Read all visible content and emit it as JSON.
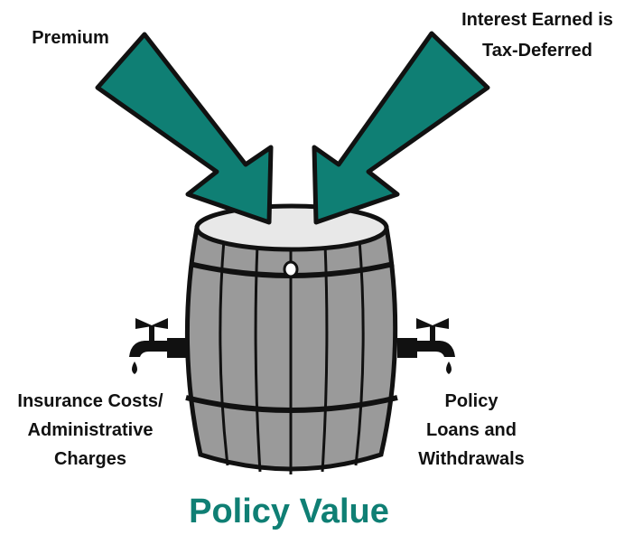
{
  "labels": {
    "premium": [
      "Premium"
    ],
    "interest": [
      "Interest Earned is",
      "Tax-Deferred"
    ],
    "costs": [
      "Insurance Costs/",
      "Administrative",
      "Charges"
    ],
    "loans": [
      "Policy",
      "Loans and",
      "Withdrawals"
    ]
  },
  "title": "Policy Value"
}
